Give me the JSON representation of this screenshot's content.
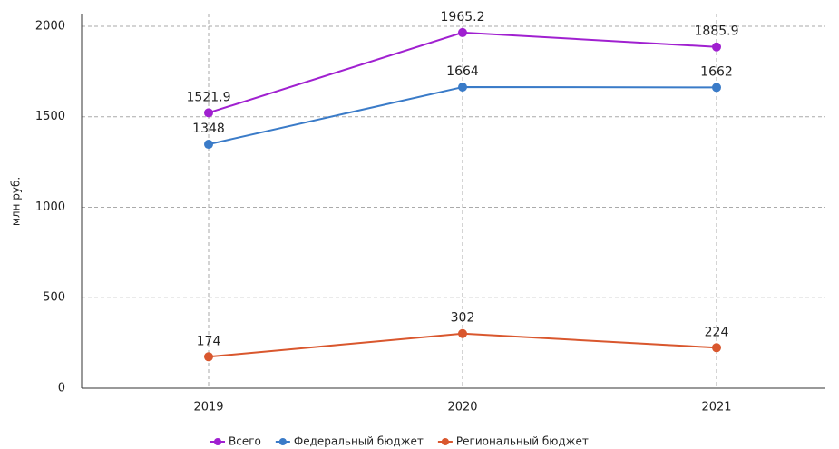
{
  "chart_data": {
    "type": "line",
    "y_label": "млн руб.",
    "categories": [
      "2019",
      "2020",
      "2021"
    ],
    "series": [
      {
        "name": "Всего",
        "color": "#a020d0",
        "values": [
          1521.9,
          1965.2,
          1885.9
        ]
      },
      {
        "name": "Федеральный бюджет",
        "color": "#3a7bc8",
        "values": [
          1348,
          1664,
          1662
        ]
      },
      {
        "name": "Региональный бюджет",
        "color": "#d9572e",
        "values": [
          174,
          302,
          224
        ]
      }
    ],
    "ylim": [
      0,
      2070
    ],
    "yticks": [
      0,
      500,
      1000,
      1500,
      2000
    ],
    "grid": true,
    "legend": "bottom"
  }
}
